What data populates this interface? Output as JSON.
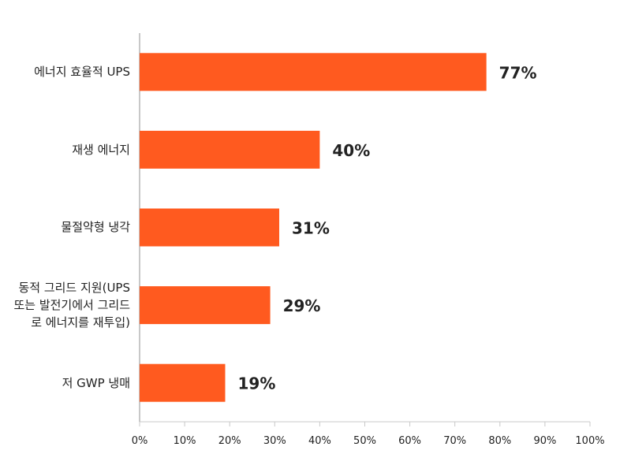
{
  "chart_data": {
    "type": "bar",
    "orientation": "horizontal",
    "categories": [
      "에너지 효율적 UPS",
      "재생 에너지",
      "물절약형 냉각",
      "동적 그리드 지원(UPS 또는 발전기에서 그리드로 에너지를 재투입)",
      "저 GWP 냉매"
    ],
    "values": [
      77,
      40,
      31,
      29,
      19
    ],
    "value_labels": [
      "77%",
      "40%",
      "31%",
      "29%",
      "19%"
    ],
    "color": "#ff5a1f",
    "xlim": [
      0,
      100
    ],
    "xticks": [
      {
        "value": 0,
        "label": "0%"
      },
      {
        "value": 10,
        "label": "10%"
      },
      {
        "value": 20,
        "label": "20%"
      },
      {
        "value": 30,
        "label": "30%"
      },
      {
        "value": 40,
        "label": "40%"
      },
      {
        "value": 50,
        "label": "50%"
      },
      {
        "value": 60,
        "label": "60%"
      },
      {
        "value": 70,
        "label": "70%"
      },
      {
        "value": 80,
        "label": "80%"
      },
      {
        "value": 90,
        "label": "90%"
      },
      {
        "value": 100,
        "label": "100%"
      }
    ],
    "grid": false
  }
}
